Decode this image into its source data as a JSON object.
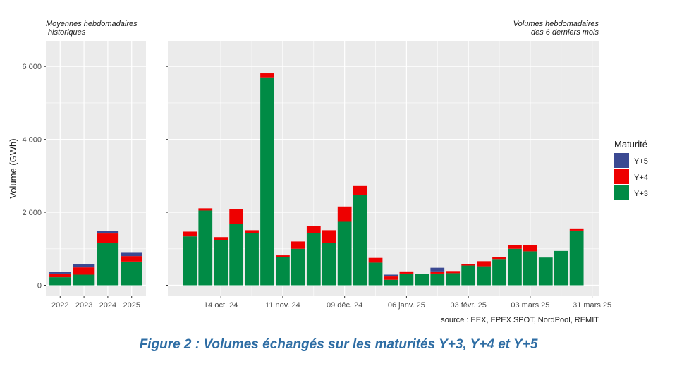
{
  "figure": {
    "caption": "Figure 2 : Volumes échangés sur les maturités Y+3, Y+4 et Y+5",
    "source": "source : EEX, EPEX SPOT, NordPool, REMIT"
  },
  "colors": {
    "Y+3": "#008b45",
    "Y+4": "#ee0000",
    "Y+5": "#3b4992",
    "panel_bg": "#ebebeb",
    "grid": "#ffffff"
  },
  "chart_data": [
    {
      "type": "bar",
      "stacked": true,
      "subtitle": "Moyennes hebdomadaires\n historiques",
      "ylabel": "Volume (GWh)",
      "ylim": [
        -300,
        6700
      ],
      "yticks": [
        0,
        2000,
        4000,
        6000
      ],
      "ytick_labels": [
        "0",
        "2 000",
        "4 000",
        "6 000"
      ],
      "grid": true,
      "categories": [
        "2022",
        "2023",
        "2024",
        "2025"
      ],
      "series": [
        {
          "name": "Y+3",
          "values": [
            220,
            290,
            1150,
            650
          ]
        },
        {
          "name": "Y+4",
          "values": [
            100,
            200,
            270,
            150
          ]
        },
        {
          "name": "Y+5",
          "values": [
            50,
            80,
            70,
            90
          ]
        }
      ]
    },
    {
      "type": "bar",
      "stacked": true,
      "subtitle": "Volumes hebdomadaires\ndes 6 derniers mois",
      "ylim": [
        -300,
        6700
      ],
      "grid": true,
      "legend": {
        "title": "Maturité",
        "position": "right"
      },
      "x_tick_labels": [
        "14 oct. 24",
        "11 nov. 24",
        "09 déc. 24",
        "06 janv. 25",
        "03 févr. 25",
        "03 mars 25",
        "31 mars 25"
      ],
      "x_tick_dates": [
        "2024-10-14",
        "2024-11-11",
        "2024-12-09",
        "2025-01-06",
        "2025-02-03",
        "2025-03-03",
        "2025-03-31"
      ],
      "x": [
        "2024-09-30",
        "2024-10-07",
        "2024-10-14",
        "2024-10-21",
        "2024-10-28",
        "2024-11-04",
        "2024-11-11",
        "2024-11-18",
        "2024-11-25",
        "2024-12-02",
        "2024-12-09",
        "2024-12-16",
        "2024-12-23",
        "2024-12-30",
        "2025-01-06",
        "2025-01-13",
        "2025-01-20",
        "2025-01-27",
        "2025-02-03",
        "2025-02-10",
        "2025-02-17",
        "2025-02-24",
        "2025-03-03",
        "2025-03-10",
        "2025-03-17",
        "2025-03-24"
      ],
      "series": [
        {
          "name": "Y+3",
          "values": [
            1340,
            2050,
            1230,
            1680,
            1440,
            5700,
            780,
            1000,
            1440,
            1160,
            1740,
            2480,
            620,
            150,
            320,
            310,
            320,
            330,
            540,
            520,
            720,
            1000,
            930,
            760,
            940,
            1500
          ]
        },
        {
          "name": "Y+4",
          "values": [
            130,
            60,
            90,
            400,
            70,
            110,
            40,
            200,
            190,
            350,
            420,
            240,
            130,
            90,
            60,
            0,
            60,
            60,
            40,
            140,
            60,
            110,
            180,
            0,
            0,
            40
          ]
        },
        {
          "name": "Y+5",
          "values": [
            0,
            0,
            0,
            0,
            0,
            0,
            0,
            0,
            0,
            0,
            0,
            0,
            0,
            50,
            0,
            0,
            100,
            0,
            0,
            0,
            0,
            0,
            0,
            0,
            0,
            0
          ]
        }
      ]
    }
  ]
}
